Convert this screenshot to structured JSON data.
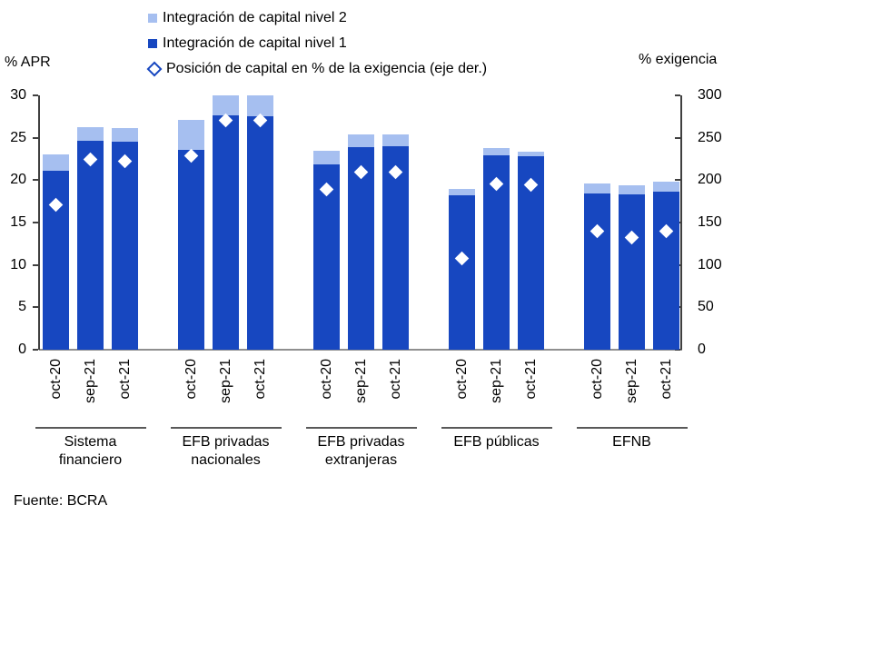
{
  "footer": "Fuente: BCRA",
  "colors": {
    "nivel2": "#a6bff0",
    "nivel1": "#1747c0",
    "marker_fill": "#ffffff",
    "axis": "#404040",
    "baseline": "#8f8f8f",
    "text": "#000000"
  },
  "legend": [
    {
      "label": "Integración de capital nivel 2",
      "marker": "square",
      "color_key": "nivel2"
    },
    {
      "label": "Integración de capital nivel 1",
      "marker": "square",
      "color_key": "nivel1"
    },
    {
      "label": "Posición de capital en % de la exigencia (eje der.)",
      "marker": "diamond",
      "color_key": "nivel1"
    }
  ],
  "chart_data": {
    "type": "bar",
    "stacked": true,
    "grid": false,
    "legend_position": "top",
    "left_axis": {
      "title": "% APR",
      "min": 0,
      "max": 30,
      "ticks": [
        0,
        5,
        10,
        15,
        20,
        25,
        30
      ]
    },
    "right_axis": {
      "title": "% exigencia",
      "min": 0,
      "max": 300,
      "ticks": [
        0,
        50,
        100,
        150,
        200,
        250,
        300
      ]
    },
    "categories": [
      "oct-20",
      "sep-21",
      "oct-21"
    ],
    "series_info": [
      {
        "name": "Integración de capital nivel 1",
        "key": "nivel1",
        "axis": "left",
        "render": "bar-stack-bottom"
      },
      {
        "name": "Integración de capital nivel 2",
        "key": "nivel2",
        "axis": "left",
        "render": "bar-stack-top"
      },
      {
        "name": "Posición de capital en % de la exigencia (eje der.)",
        "key": "posicion",
        "axis": "right",
        "render": "diamond-marker"
      }
    ],
    "groups": [
      {
        "label": "Sistema financiero",
        "nivel1": [
          21.1,
          24.6,
          24.5
        ],
        "nivel2": [
          1.9,
          1.7,
          1.6
        ],
        "posicion": [
          171,
          224,
          222
        ]
      },
      {
        "label": "EFB privadas nacionales",
        "nivel1": [
          23.6,
          27.6,
          27.5
        ],
        "nivel2": [
          3.5,
          2.4,
          2.5
        ],
        "posicion": [
          229,
          271,
          271
        ]
      },
      {
        "label": "EFB privadas extranjeras",
        "nivel1": [
          21.9,
          23.9,
          24.0
        ],
        "nivel2": [
          1.6,
          1.5,
          1.4
        ],
        "posicion": [
          189,
          210,
          210
        ]
      },
      {
        "label": "EFB públicas",
        "nivel1": [
          18.2,
          22.9,
          22.8
        ],
        "nivel2": [
          0.8,
          0.9,
          0.6
        ],
        "posicion": [
          108,
          196,
          195
        ]
      },
      {
        "label": "EFNB",
        "nivel1": [
          18.4,
          18.3,
          18.6
        ],
        "nivel2": [
          1.2,
          1.1,
          1.2
        ],
        "posicion": [
          140,
          132,
          140
        ]
      }
    ]
  }
}
